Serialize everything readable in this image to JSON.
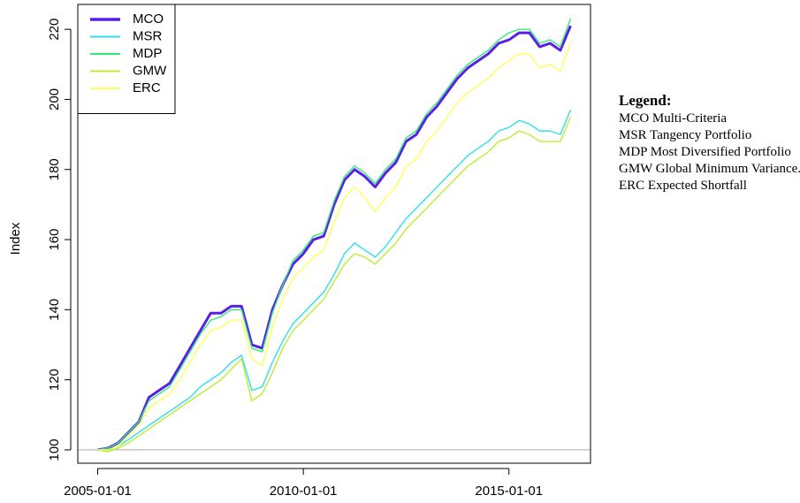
{
  "chart_data": {
    "type": "line",
    "y_label": "Index",
    "x": [
      "2005-01-01",
      "2005-04-01",
      "2005-07-01",
      "2005-10-01",
      "2006-01-01",
      "2006-04-01",
      "2006-07-01",
      "2006-10-01",
      "2007-01-01",
      "2007-04-01",
      "2007-07-01",
      "2007-10-01",
      "2008-01-01",
      "2008-04-01",
      "2008-07-01",
      "2008-10-01",
      "2009-01-01",
      "2009-04-01",
      "2009-07-01",
      "2009-10-01",
      "2010-01-01",
      "2010-04-01",
      "2010-07-01",
      "2010-10-01",
      "2011-01-01",
      "2011-04-01",
      "2011-07-01",
      "2011-10-01",
      "2012-01-01",
      "2012-04-01",
      "2012-07-01",
      "2012-10-01",
      "2013-01-01",
      "2013-04-01",
      "2013-07-01",
      "2013-10-01",
      "2014-01-01",
      "2014-04-01",
      "2014-07-01",
      "2014-10-01",
      "2015-01-01",
      "2015-04-01",
      "2015-07-01",
      "2015-10-01",
      "2016-01-01",
      "2016-04-01",
      "2016-07-01"
    ],
    "series": [
      {
        "name": "MCO",
        "color": "#5a1fe6",
        "width": 3,
        "values": [
          100,
          100.5,
          102,
          105,
          108,
          115,
          117,
          119,
          124,
          129,
          134,
          139,
          139,
          141,
          141,
          130,
          129,
          140,
          147,
          153,
          156,
          160,
          161,
          170,
          177,
          180,
          178,
          175,
          179,
          182,
          188,
          190,
          195,
          198,
          202,
          206,
          209,
          211,
          213,
          216,
          217,
          219,
          219,
          215,
          216,
          214,
          221
        ]
      },
      {
        "name": "MSR",
        "color": "#33ddee",
        "width": 1.4,
        "values": [
          100,
          100,
          101,
          103,
          105,
          107,
          109,
          111,
          113,
          115,
          118,
          120,
          122,
          125,
          127,
          117,
          118,
          125,
          131,
          136,
          139,
          142,
          145,
          150,
          156,
          159,
          157,
          155,
          158,
          162,
          166,
          169,
          172,
          175,
          178,
          181,
          184,
          186,
          188,
          191,
          192,
          194,
          193,
          191,
          191,
          190,
          197
        ]
      },
      {
        "name": "MDP",
        "color": "#33e877",
        "width": 1.4,
        "values": [
          100,
          100.5,
          102,
          105,
          108,
          114,
          116,
          118,
          123,
          128,
          133,
          137,
          138,
          140,
          140,
          129,
          128,
          139,
          147,
          154,
          157,
          161,
          162,
          171,
          178,
          181,
          179,
          176,
          180,
          183,
          189,
          191,
          196,
          199,
          203,
          207,
          210,
          212,
          214,
          217,
          219,
          220,
          220,
          216,
          217,
          215,
          223
        ]
      },
      {
        "name": "GMW",
        "color": "#bbee33",
        "width": 1.4,
        "values": [
          100,
          99.5,
          100.5,
          102,
          104,
          106,
          108,
          110,
          112,
          114,
          116,
          118,
          120,
          123,
          126,
          114,
          116,
          122,
          129,
          134,
          137,
          140,
          143,
          148,
          153,
          156,
          155,
          153,
          156,
          159,
          163,
          166,
          169,
          172,
          175,
          178,
          181,
          183,
          185,
          188,
          189,
          191,
          190,
          188,
          188,
          188,
          195
        ]
      },
      {
        "name": "ERC",
        "color": "#ffff55",
        "width": 1.4,
        "values": [
          100,
          100,
          101,
          104,
          107,
          112,
          114,
          116,
          120,
          125,
          130,
          134,
          135,
          137,
          137,
          126,
          124,
          135,
          143,
          149,
          152,
          155,
          157,
          165,
          172,
          175,
          172,
          168,
          172,
          175,
          181,
          183,
          188,
          191,
          195,
          199,
          202,
          204,
          206,
          209,
          211,
          213,
          213,
          209,
          210,
          208,
          216
        ]
      }
    ],
    "xlim": [
      "2004-07-08",
      "2016-12-25"
    ],
    "xticks": [
      "2005-01-01",
      "2010-01-01",
      "2015-01-01"
    ],
    "ylim": [
      96.2,
      227.1
    ],
    "yticks": [
      100,
      120,
      140,
      160,
      180,
      200,
      220
    ],
    "reference_line": 100,
    "legend": "top-left",
    "notes": {
      "title": "Legend:",
      "items": [
        "MCO Multi-Criteria",
        "MSR Tangency Portfolio",
        "MDP Most Diversified Portfolio",
        "GMW Global Minimum Variance.",
        "ERC Expected Shortfall"
      ]
    }
  }
}
